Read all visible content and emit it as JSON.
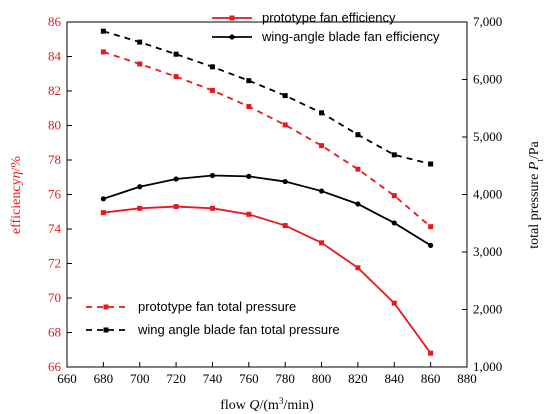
{
  "colors": {
    "red": "#e8191c",
    "black": "#000000"
  },
  "chart_data": {
    "type": "line",
    "x_axis": {
      "label_prefix": "flow ",
      "label_var": "Q",
      "label_mid": "/(m",
      "label_sup": "3",
      "label_suffix": "/min)",
      "range": [
        660,
        880
      ],
      "ticks": [
        "660",
        "680",
        "700",
        "720",
        "740",
        "760",
        "780",
        "800",
        "820",
        "840",
        "860",
        "880"
      ]
    },
    "y_left": {
      "label_prefix": "efficiency",
      "label_var": "η",
      "label_suffix": "/%",
      "range": [
        66,
        86
      ],
      "ticks": [
        "66",
        "68",
        "70",
        "72",
        "74",
        "76",
        "78",
        "80",
        "82",
        "84",
        "86"
      ]
    },
    "y_right": {
      "label_prefix": "total pressure ",
      "label_var": "P",
      "label_sub": "t",
      "label_suffix": "/Pa",
      "range": [
        1000,
        7000
      ],
      "ticks": [
        "1,000",
        "2,000",
        "3,000",
        "4,000",
        "5,000",
        "6,000",
        "7,000"
      ]
    },
    "x": [
      680,
      700,
      720,
      740,
      760,
      780,
      800,
      820,
      840,
      860
    ],
    "series": [
      {
        "name": "prototype fan efficiency",
        "axis": "left",
        "color": "#e8191c",
        "dashed": false,
        "marker": "square",
        "values": [
          74.95,
          75.2,
          75.3,
          75.2,
          74.85,
          74.2,
          73.2,
          71.75,
          69.7,
          66.8
        ]
      },
      {
        "name": "wing-angle blade fan efficiency",
        "axis": "left",
        "color": "#000000",
        "dashed": false,
        "marker": "circle",
        "values": [
          75.75,
          76.45,
          76.9,
          77.1,
          77.05,
          76.75,
          76.2,
          75.45,
          74.35,
          73.05
        ]
      },
      {
        "name": "prototype fan total pressure",
        "axis": "right",
        "color": "#e8191c",
        "dashed": true,
        "marker": "square",
        "values": [
          6480,
          6270,
          6050,
          5810,
          5530,
          5210,
          4850,
          4440,
          3980,
          3440
        ]
      },
      {
        "name": "wing angle blade fan total pressure",
        "axis": "right",
        "color": "#000000",
        "dashed": true,
        "marker": "square",
        "values": [
          6840,
          6650,
          6440,
          6220,
          5980,
          5720,
          5420,
          5040,
          4690,
          4530
        ]
      }
    ],
    "legend_top": [
      0,
      1
    ],
    "legend_bottom": [
      2,
      3
    ]
  }
}
